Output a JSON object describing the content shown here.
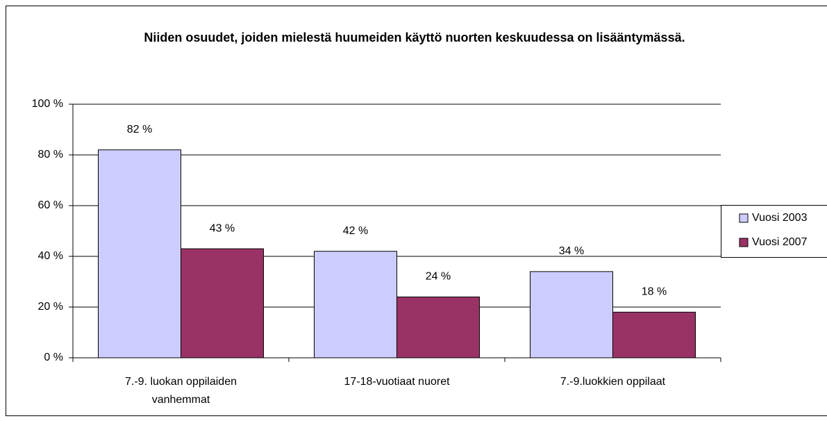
{
  "chart_data": {
    "type": "bar",
    "title": "Niiden osuudet, joiden mielestä huumeiden käyttö nuorten keskuudessa on lisääntymässä.",
    "categories": [
      "7.-9. luokan oppilaiden vanhemmat",
      "17-18-vuotiaat nuoret",
      "7.-9.luokkien oppilaat"
    ],
    "series": [
      {
        "name": "Vuosi 2003",
        "color": "#ccccff",
        "values": [
          82,
          42,
          34
        ],
        "value_labels": [
          "82 %",
          "42 %",
          "34 %"
        ]
      },
      {
        "name": "Vuosi 2007",
        "color": "#993366",
        "values": [
          43,
          24,
          18
        ],
        "value_labels": [
          "43 %",
          "24 %",
          "18 %"
        ]
      }
    ],
    "ylim": [
      0,
      100
    ],
    "yticks": [
      {
        "value": 0,
        "label": "0 %"
      },
      {
        "value": 20,
        "label": "20 %"
      },
      {
        "value": 40,
        "label": "40 %"
      },
      {
        "value": 60,
        "label": "60 %"
      },
      {
        "value": 80,
        "label": "80 %"
      },
      {
        "value": 100,
        "label": "100 %"
      }
    ],
    "grid": true,
    "legend": "right"
  }
}
